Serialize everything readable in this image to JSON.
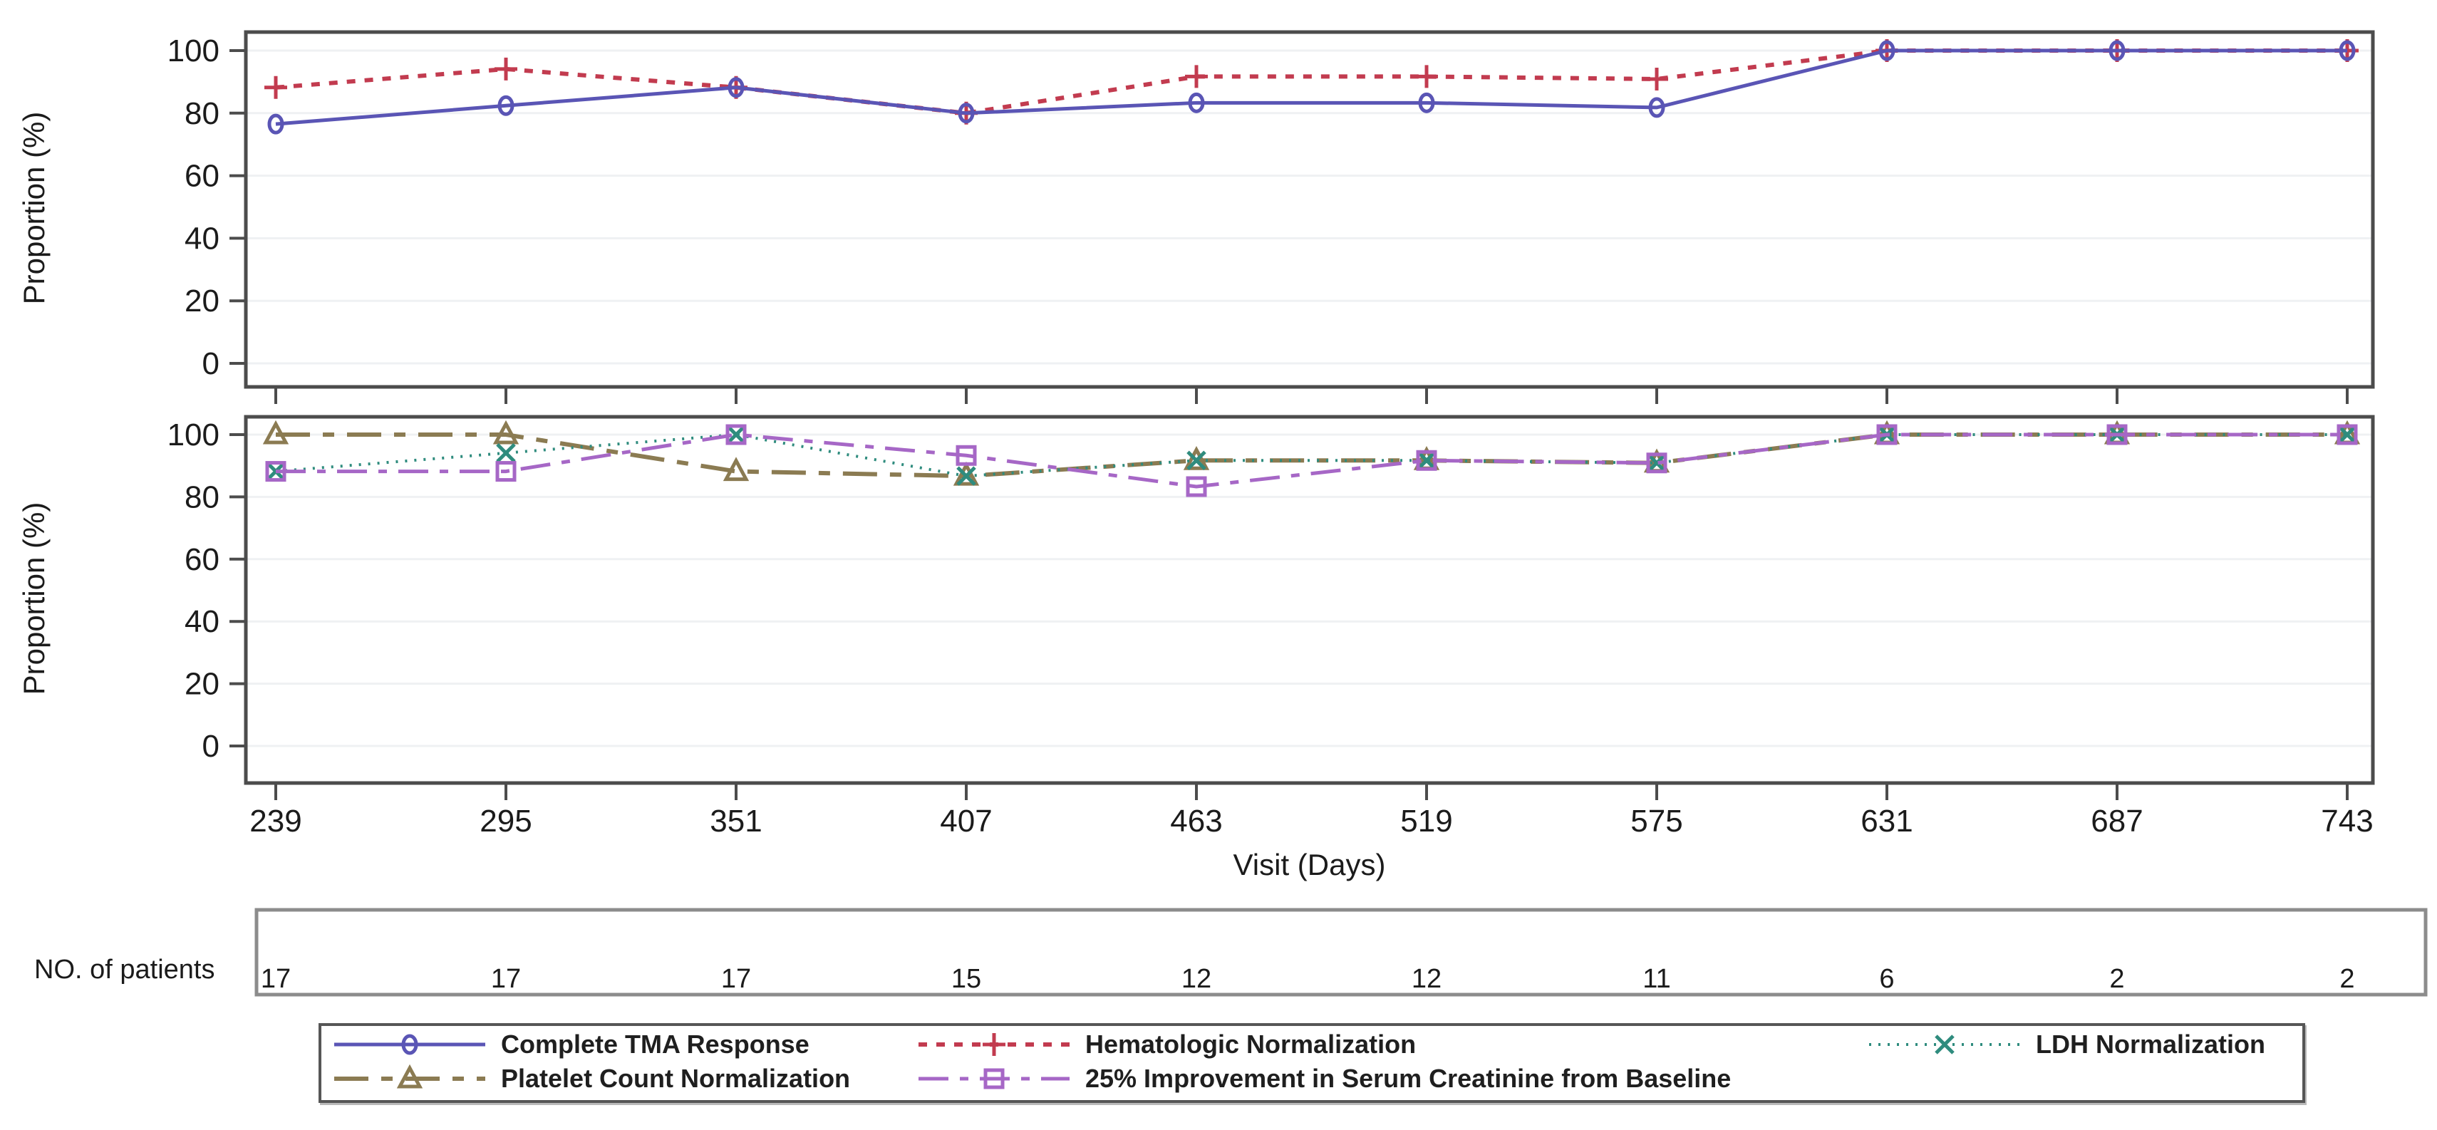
{
  "axes": {
    "y_title": "Proportion (%)",
    "x_title": "Visit (Days)"
  },
  "patients_table": {
    "label": "NO. of patients",
    "values": [
      17,
      17,
      17,
      15,
      12,
      12,
      11,
      6,
      2,
      2
    ]
  },
  "chart_data": [
    {
      "type": "line",
      "panel": "top",
      "x": [
        239,
        295,
        351,
        407,
        463,
        519,
        575,
        631,
        687,
        743
      ],
      "ylabel": "Proportion (%)",
      "xlabel": "Visit (Days)",
      "ylim": [
        0,
        100
      ],
      "yticks": [
        0,
        20,
        40,
        60,
        80,
        100
      ],
      "grid": "horizontal",
      "legend_position": "bottom-outside",
      "series": [
        {
          "name": "Hematologic Normalization",
          "color": "#C23B4F",
          "line": "dashed",
          "marker": "plus",
          "values": [
            88.2,
            94.1,
            88.2,
            80.0,
            91.7,
            91.7,
            90.9,
            100,
            100,
            100
          ]
        },
        {
          "name": "Complete TMA Response",
          "color": "#5A55B5",
          "line": "solid",
          "marker": "circle",
          "values": [
            76.5,
            82.4,
            88.2,
            80.0,
            83.3,
            83.3,
            81.8,
            100,
            100,
            100
          ]
        }
      ]
    },
    {
      "type": "line",
      "panel": "bottom",
      "x": [
        239,
        295,
        351,
        407,
        463,
        519,
        575,
        631,
        687,
        743
      ],
      "ylabel": "Proportion (%)",
      "xlabel": "Visit (Days)",
      "ylim": [
        0,
        100
      ],
      "yticks": [
        0,
        20,
        40,
        60,
        80,
        100
      ],
      "grid": "horizontal",
      "series": [
        {
          "name": "Platelet Count Normalization",
          "color": "#8B7B52",
          "line": "dashdot-long",
          "marker": "triangle",
          "values": [
            100,
            100,
            88.2,
            86.7,
            91.7,
            91.7,
            90.9,
            100,
            100,
            100
          ]
        },
        {
          "name": "LDH Normalization",
          "color": "#2F8C7E",
          "line": "dotted",
          "marker": "x",
          "values": [
            88.2,
            94.1,
            100,
            86.7,
            91.7,
            91.7,
            90.9,
            100,
            100,
            100
          ]
        },
        {
          "name": "25% Improvement in Serum Creatinine from Baseline",
          "color": "#A667C6",
          "line": "dashdot",
          "marker": "square",
          "values": [
            88.2,
            88.2,
            100,
            93.3,
            83.3,
            91.7,
            90.9,
            100,
            100,
            100
          ]
        }
      ]
    }
  ]
}
